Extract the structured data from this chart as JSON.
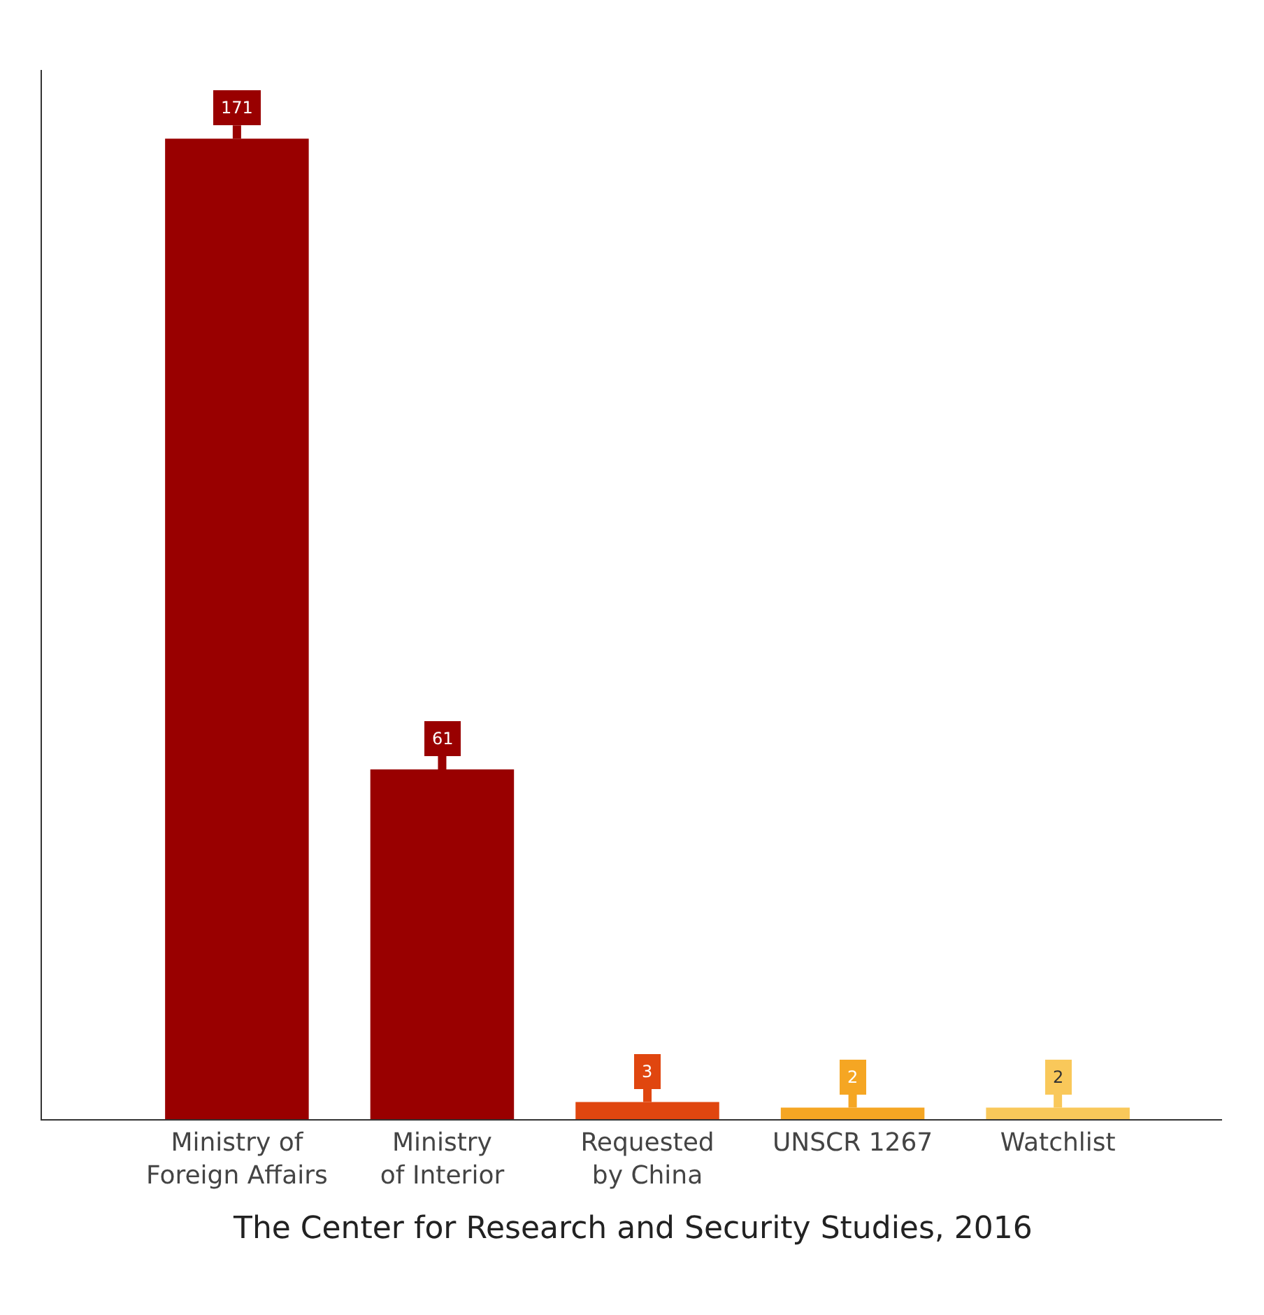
{
  "chart_data": {
    "type": "bar",
    "categories": [
      "Ministry of Foreign Affairs",
      "Ministry of Interior",
      "Requested by China",
      "UNSCR 1267",
      "Watchlist"
    ],
    "values": [
      171,
      61,
      3,
      2,
      2
    ],
    "colors": [
      "#990000",
      "#990000",
      "#e0460f",
      "#f5a623",
      "#f9c85a"
    ],
    "data_labels": true,
    "annotations": [
      "The Center for Research and Security Studies, 2016"
    ]
  }
}
